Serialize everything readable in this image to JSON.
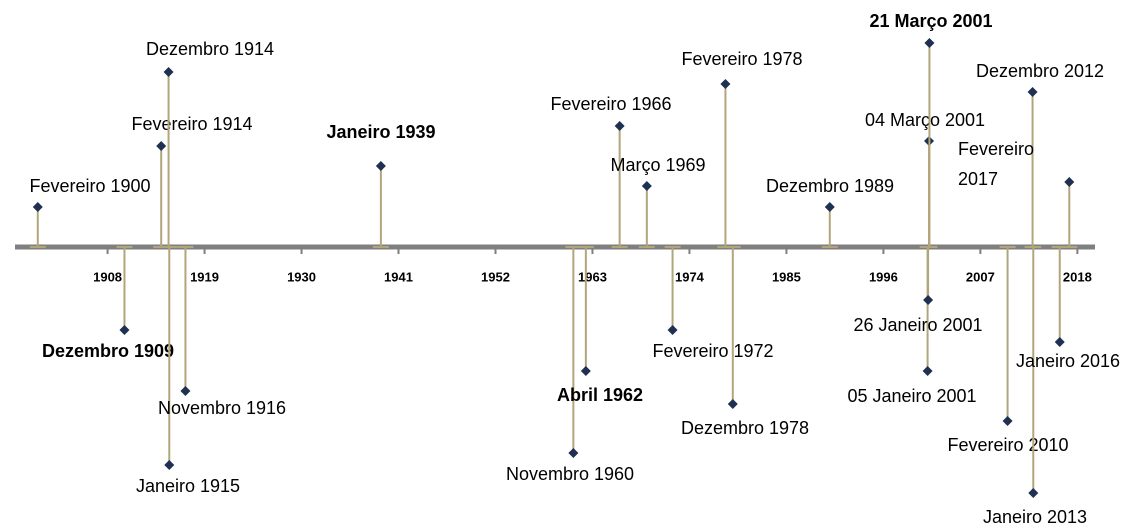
{
  "chart_data": {
    "type": "timeline",
    "xlim": [
      1897.5,
      2020
    ],
    "xticks": [
      1908,
      1919,
      1930,
      1941,
      1952,
      1963,
      1974,
      1985,
      1996,
      2007,
      2018
    ],
    "axis_color": "#7f7f7f",
    "stem_color": "#b3a57a",
    "marker_color": "#1f3050",
    "label_color": "#000000",
    "events": [
      {
        "label": "Fevereiro 1900",
        "x": "1900-02"
      },
      {
        "label": "Dezembro 1909",
        "x": "1909-12",
        "color": "#c00000"
      },
      {
        "label": "Fevereiro 1914",
        "x": "1914-02"
      },
      {
        "label": "Dezembro 1914",
        "x": "1914-12"
      },
      {
        "label": "Janeiro 1915",
        "x": "1915-01"
      },
      {
        "label": "Novembro 1916",
        "x": "1916-11"
      },
      {
        "label": "Janeiro 1939",
        "x": "1939-01",
        "color": "#c00000"
      },
      {
        "label": "Novembro 1960",
        "x": "1960-11"
      },
      {
        "label": "Abril 1962",
        "x": "1962-04",
        "color": "#c00000"
      },
      {
        "label": "Fevereiro 1966",
        "x": "1966-02"
      },
      {
        "label": "Março 1969",
        "x": "1969-03"
      },
      {
        "label": "Fevereiro 1972",
        "x": "1972-02"
      },
      {
        "label": "Fevereiro 1978",
        "x": "1978-02"
      },
      {
        "label": "Dezembro 1978",
        "x": "1978-12"
      },
      {
        "label": "Dezembro 1989",
        "x": "1989-12"
      },
      {
        "label": "05 Janeiro 2001",
        "x": "2001-01-05"
      },
      {
        "label": "26 Janeiro 2001",
        "x": "2001-01-26"
      },
      {
        "label": "04 Março 2001",
        "x": "2001-03-04"
      },
      {
        "label": "21 Março 2001",
        "x": "2001-03-21",
        "color": "#c00000"
      },
      {
        "label": "Fevereiro 2010",
        "x": "2010-02"
      },
      {
        "label": "Dezembro 2012",
        "x": "2012-12"
      },
      {
        "label": "Janeiro 2013",
        "x": "2013-01"
      },
      {
        "label": "Janeiro 2016",
        "x": "2016-01"
      },
      {
        "label": "Fevereiro 2017",
        "x": "2017-02"
      }
    ]
  }
}
